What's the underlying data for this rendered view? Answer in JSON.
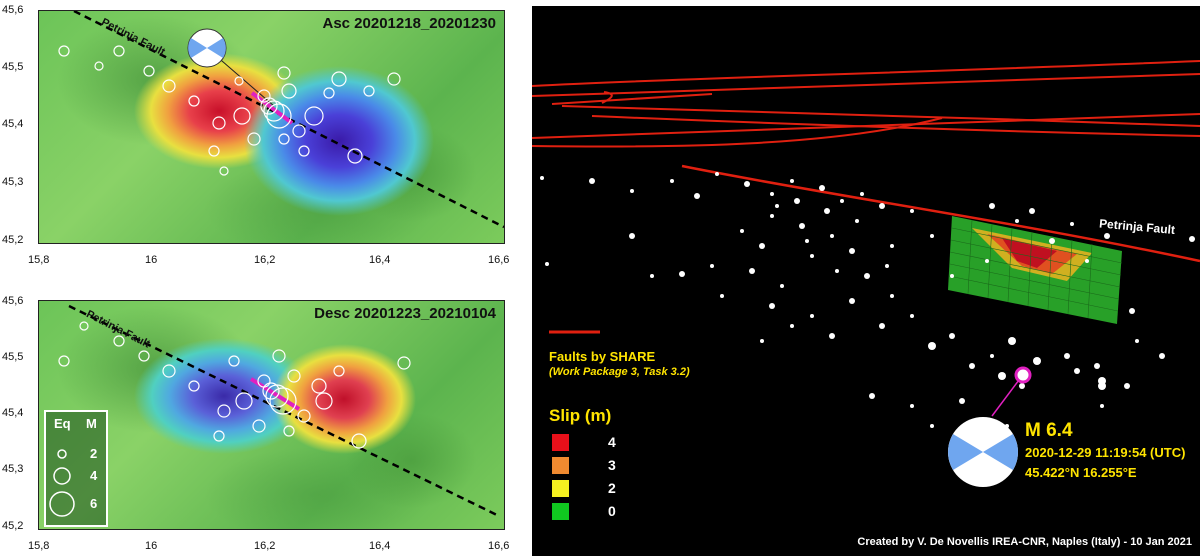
{
  "top_map": {
    "title": "Asc 20201218_20201230",
    "fault_label": "Petrinja Fault",
    "x_ticks": [
      "15,8",
      "16",
      "16,2",
      "16,4",
      "16,6"
    ],
    "y_ticks": [
      "45,6",
      "45,5",
      "45,4",
      "45,3",
      "45,2"
    ]
  },
  "bottom_map": {
    "title": "Desc 20201223_20210104",
    "fault_label": "Petrinja Fault",
    "x_ticks": [
      "15,8",
      "16",
      "16,2",
      "16,4",
      "16,6"
    ],
    "y_ticks": [
      "45,6",
      "45,5",
      "45,4",
      "45,3",
      "45,2"
    ]
  },
  "legend": {
    "col_eq": "Eq",
    "col_m": "M",
    "magnitudes": [
      "2",
      "4",
      "6"
    ]
  },
  "right_panel": {
    "fault_label": "Petrinja Fault",
    "faults_title": "Faults by SHARE",
    "faults_sub": "(Work Package 3, Task 3.2)",
    "slip_title": "Slip (m)",
    "slip_levels": [
      {
        "value": "4",
        "color": "#e8101a"
      },
      {
        "value": "3",
        "color": "#f08a30"
      },
      {
        "value": "2",
        "color": "#f5f020"
      },
      {
        "value": "0",
        "color": "#10c820"
      }
    ],
    "event": {
      "magnitude": "M 6.4",
      "datetime": "2020-12-29 11:19:54 (UTC)",
      "location": "45.422°N 16.255°E"
    },
    "credit": "Created by V. De Novellis  IREA-CNR, Naples (Italy) - 10 Jan 2021",
    "colors": {
      "fault": "#e02010",
      "text_yellow": "#ffe400",
      "event_ring": "#e020c0",
      "beachball_blue": "#6fa6ef"
    }
  }
}
